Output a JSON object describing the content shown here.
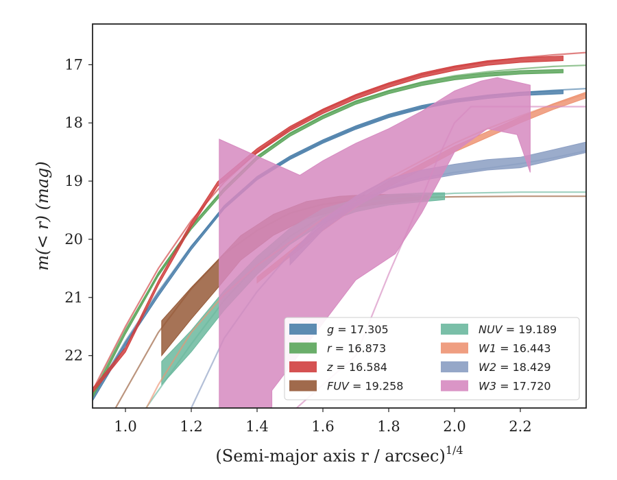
{
  "chart_data": {
    "type": "area",
    "xlabel": "(Semi-major axis r / arcsec)",
    "xlabel_sup": "1/4",
    "ylabel": "m(< r) (mag)",
    "xlim": [
      0.9,
      2.4
    ],
    "ylim": [
      22.9,
      16.3
    ],
    "y_inverted": true,
    "xticks": [
      "1.0",
      "1.2",
      "1.4",
      "1.6",
      "1.8",
      "2.0",
      "2.2"
    ],
    "yticks": [
      "17",
      "18",
      "19",
      "20",
      "21",
      "22"
    ],
    "grid": false,
    "legend_position": "lower-right",
    "series": [
      {
        "name": "g = 17.305",
        "label_var": "g",
        "label_val": "17.305",
        "color": "#4a7ea9",
        "obs_x": [
          0.9,
          1.0,
          1.1,
          1.2,
          1.3,
          1.4,
          1.5,
          1.6,
          1.7,
          1.8,
          1.9,
          2.0,
          2.1,
          2.2,
          2.33
        ],
        "obs_y": [
          22.75,
          21.8,
          20.95,
          20.15,
          19.45,
          18.95,
          18.6,
          18.32,
          18.08,
          17.88,
          17.73,
          17.62,
          17.55,
          17.5,
          17.47
        ],
        "halfwidth": 0.03,
        "model_x": [
          0.9,
          1.0,
          1.1,
          1.2,
          1.3,
          1.4,
          1.5,
          1.6,
          1.7,
          1.8,
          1.9,
          2.0,
          2.1,
          2.2,
          2.3,
          2.4
        ],
        "model_y": [
          22.7,
          21.75,
          20.9,
          20.12,
          19.45,
          18.95,
          18.6,
          18.32,
          18.08,
          17.88,
          17.73,
          17.62,
          17.54,
          17.48,
          17.44,
          17.41
        ]
      },
      {
        "name": "r = 16.873",
        "label_var": "r",
        "label_val": "16.873",
        "color": "#5aa55a",
        "obs_x": [
          0.9,
          1.0,
          1.1,
          1.2,
          1.3,
          1.4,
          1.5,
          1.6,
          1.7,
          1.8,
          1.9,
          2.0,
          2.1,
          2.2,
          2.33
        ],
        "obs_y": [
          22.7,
          21.6,
          20.6,
          19.8,
          19.15,
          18.6,
          18.2,
          17.9,
          17.65,
          17.47,
          17.33,
          17.23,
          17.17,
          17.13,
          17.11
        ],
        "halfwidth": 0.03,
        "model_x": [
          0.9,
          1.0,
          1.1,
          1.2,
          1.3,
          1.4,
          1.5,
          1.6,
          1.7,
          1.8,
          1.9,
          2.0,
          2.1,
          2.2,
          2.3,
          2.4
        ],
        "model_y": [
          22.65,
          21.55,
          20.6,
          19.78,
          19.12,
          18.58,
          18.18,
          17.88,
          17.63,
          17.45,
          17.3,
          17.19,
          17.12,
          17.07,
          17.03,
          17.01
        ]
      },
      {
        "name": "z = 16.584",
        "label_var": "z",
        "label_val": "16.584",
        "color": "#d03f3f",
        "obs_x": [
          0.9,
          1.0,
          1.1,
          1.2,
          1.28,
          1.4,
          1.5,
          1.6,
          1.7,
          1.8,
          1.9,
          2.0,
          2.1,
          2.2,
          2.33
        ],
        "obs_y": [
          22.6,
          21.9,
          20.75,
          19.75,
          19.05,
          18.48,
          18.1,
          17.8,
          17.55,
          17.35,
          17.18,
          17.06,
          16.97,
          16.92,
          16.89
        ],
        "halfwidth": 0.04,
        "model_x": [
          0.9,
          1.0,
          1.1,
          1.2,
          1.3,
          1.4,
          1.5,
          1.6,
          1.7,
          1.8,
          1.9,
          2.0,
          2.1,
          2.2,
          2.3,
          2.4
        ],
        "model_y": [
          22.6,
          21.5,
          20.5,
          19.68,
          19.02,
          18.5,
          18.1,
          17.78,
          17.53,
          17.33,
          17.17,
          17.04,
          16.95,
          16.88,
          16.83,
          16.79
        ]
      },
      {
        "name": "FUV = 19.258",
        "label_var": "FUV",
        "label_val": "19.258",
        "color": "#965a38",
        "obs_x": [
          1.11,
          1.2,
          1.28,
          1.35,
          1.45,
          1.55,
          1.65,
          1.75,
          1.85,
          1.92
        ],
        "obs_y": [
          21.7,
          21.1,
          20.6,
          20.15,
          19.75,
          19.5,
          19.38,
          19.32,
          19.29,
          19.28
        ],
        "halfwidth_start": 0.3,
        "halfwidth_end": 0.03,
        "model_x": [
          0.9,
          1.0,
          1.1,
          1.2,
          1.3,
          1.4,
          1.5,
          1.6,
          1.7,
          1.8,
          1.9,
          2.0,
          2.2,
          2.4
        ],
        "model_y": [
          23.6,
          22.6,
          21.6,
          20.85,
          20.25,
          19.85,
          19.55,
          19.4,
          19.33,
          19.3,
          19.28,
          19.27,
          19.26,
          19.26
        ]
      },
      {
        "name": "NUV = 19.189",
        "label_var": "NUV",
        "label_val": "19.189",
        "color": "#6bb89e",
        "obs_x": [
          1.11,
          1.2,
          1.3,
          1.4,
          1.5,
          1.6,
          1.7,
          1.8,
          1.9,
          1.97
        ],
        "obs_y": [
          22.3,
          21.75,
          21.05,
          20.45,
          19.95,
          19.6,
          19.42,
          19.32,
          19.28,
          19.26
        ],
        "halfwidth_start": 0.2,
        "halfwidth_end": 0.06,
        "model_x": [
          1.0,
          1.1,
          1.2,
          1.3,
          1.4,
          1.5,
          1.6,
          1.7,
          1.8,
          1.9,
          2.0,
          2.2,
          2.4
        ],
        "model_y": [
          23.4,
          22.6,
          21.8,
          21.05,
          20.45,
          19.95,
          19.6,
          19.4,
          19.3,
          19.24,
          19.21,
          19.19,
          19.19
        ]
      },
      {
        "name": "W1 = 16.443",
        "label_var": "W1",
        "label_val": "16.443",
        "color": "#ed9473",
        "obs_x": [
          1.4,
          1.5,
          1.6,
          1.7,
          1.8,
          1.9,
          2.0,
          2.1,
          2.2,
          2.3,
          2.4
        ],
        "obs_y": [
          20.7,
          20.25,
          19.8,
          19.4,
          19.05,
          18.75,
          18.45,
          18.2,
          17.95,
          17.72,
          17.52
        ],
        "halfwidth": 0.05,
        "model_x": [
          1.0,
          1.1,
          1.2,
          1.3,
          1.4,
          1.5,
          1.6,
          1.7,
          1.8,
          1.9,
          2.0,
          2.1,
          2.2,
          2.3,
          2.4
        ],
        "model_y": [
          23.6,
          22.5,
          21.6,
          20.95,
          20.45,
          20.05,
          19.65,
          19.3,
          18.95,
          18.65,
          18.35,
          18.1,
          17.88,
          17.68,
          17.5
        ]
      },
      {
        "name": "W2 = 18.429",
        "label_var": "W2",
        "label_val": "18.429",
        "color": "#8a9dc2",
        "obs_x": [
          1.5,
          1.6,
          1.7,
          1.8,
          1.9,
          2.0,
          2.1,
          2.2,
          2.3,
          2.4
        ],
        "obs_y": [
          20.35,
          19.75,
          19.35,
          19.05,
          18.9,
          18.8,
          18.72,
          18.68,
          18.55,
          18.42
        ],
        "halfwidth": 0.09,
        "model_x": [
          1.2,
          1.3,
          1.4,
          1.5,
          1.6,
          1.7,
          1.8,
          1.9,
          2.0,
          2.1,
          2.2,
          2.3,
          2.4
        ],
        "model_y": [
          22.9,
          21.7,
          20.9,
          20.25,
          19.75,
          19.38,
          19.12,
          18.95,
          18.85,
          18.78,
          18.7,
          18.6,
          18.48
        ]
      },
      {
        "name": "W3 = 17.720",
        "label_var": "W3",
        "label_val": "17.720",
        "color": "#d68ac0",
        "upper_x": [
          1.285,
          1.53,
          1.6,
          1.7,
          1.8,
          1.9,
          2.0,
          2.08,
          2.13,
          2.23
        ],
        "upper_y": [
          18.28,
          18.9,
          18.65,
          18.35,
          18.1,
          17.8,
          17.45,
          17.28,
          17.22,
          17.35
        ],
        "lower_x": [
          1.285,
          1.445,
          1.445,
          1.7,
          1.82,
          1.9,
          2.0,
          2.1,
          2.19,
          2.23
        ],
        "lower_y": [
          22.9,
          22.9,
          22.6,
          20.7,
          20.25,
          19.55,
          18.5,
          18.1,
          18.2,
          18.85
        ],
        "model_x": [
          1.3,
          1.5,
          1.7,
          1.8,
          1.9,
          1.95,
          2.0,
          2.05,
          2.2,
          2.4
        ],
        "model_y": [
          24.0,
          23.0,
          22.0,
          20.6,
          19.3,
          18.6,
          18.0,
          17.72,
          17.72,
          17.72
        ]
      }
    ]
  }
}
